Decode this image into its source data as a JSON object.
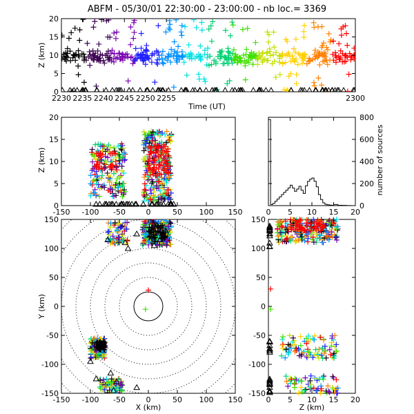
{
  "figure": {
    "title": "ABFM - 05/30/01 22:30:00 - 23:00:00 - nb loc.=    3369"
  },
  "chart_data": [
    {
      "id": "time-height",
      "type": "scatter",
      "xlabel": "Time (UT)",
      "ylabel": "Z (km)",
      "xlim": [
        2230,
        2300
      ],
      "ylim": [
        0,
        20
      ],
      "xticks": [
        "2230",
        "2235",
        "2240",
        "2245",
        "2250",
        "2255",
        "2300"
      ],
      "yticks": [
        "0",
        "5",
        "10",
        "15",
        "20"
      ],
      "color_by": "time (black→purple→blue→cyan→green→yellow→orange→red)",
      "band": {
        "z_center": 9.5,
        "z_spread": 3.0
      },
      "ground_triangles_z": 0
    },
    {
      "id": "x-z",
      "type": "scatter",
      "xlabel": "",
      "ylabel": "Z (km)",
      "xlim": [
        -150,
        150
      ],
      "ylim": [
        0,
        20
      ],
      "xticks": [
        "-150",
        "-100",
        "-50",
        "0",
        "50",
        "100",
        "150"
      ],
      "yticks": [
        "0",
        "5",
        "10",
        "15",
        "20"
      ],
      "clusters": [
        {
          "x_range": [
            -100,
            -40
          ],
          "z_range": [
            2,
            14
          ]
        },
        {
          "x_range": [
            -8,
            40
          ],
          "z_range": [
            1,
            17
          ]
        }
      ]
    },
    {
      "id": "altitude-histogram",
      "type": "line",
      "xlabel": "",
      "ylabel": "number of sources",
      "xlim": [
        0,
        20
      ],
      "ylim": [
        0,
        800
      ],
      "xticks": [
        "0",
        "5",
        "10",
        "15",
        "20"
      ],
      "yticks": [
        "0",
        "200",
        "400",
        "600",
        "800"
      ],
      "x": [
        0,
        0.5,
        1,
        1.5,
        2,
        2.5,
        3,
        3.5,
        4,
        4.5,
        5,
        5.5,
        6,
        6.5,
        7,
        7.5,
        8,
        8.5,
        9,
        9.5,
        10,
        10.5,
        11,
        11.5,
        12,
        12.5,
        13,
        13.5,
        14,
        14.5,
        15,
        16,
        17,
        18,
        19,
        20
      ],
      "values": [
        780,
        10,
        20,
        40,
        60,
        80,
        100,
        120,
        140,
        160,
        185,
        160,
        130,
        150,
        175,
        140,
        110,
        180,
        220,
        240,
        250,
        220,
        170,
        100,
        55,
        25,
        12,
        8,
        5,
        3,
        10,
        3,
        2,
        1,
        0,
        0
      ]
    },
    {
      "id": "x-y",
      "type": "scatter",
      "xlabel": "X (km)",
      "ylabel": "Y (km)",
      "xlim": [
        -150,
        150
      ],
      "ylim": [
        -150,
        150
      ],
      "xticks": [
        "-150",
        "-100",
        "-50",
        "0",
        "50",
        "100",
        "150"
      ],
      "yticks": [
        "-150",
        "-100",
        "-50",
        "0",
        "50",
        "100",
        "150"
      ],
      "range_rings_km": [
        25,
        50,
        75,
        100,
        125,
        150,
        175,
        200
      ],
      "clusters": [
        {
          "x_range": [
            -70,
            -35
          ],
          "y_range": [
            108,
            145
          ]
        },
        {
          "x_range": [
            -10,
            40
          ],
          "y_range": [
            105,
            150
          ]
        },
        {
          "x_range": [
            -100,
            -75
          ],
          "y_range": [
            -90,
            -55
          ]
        },
        {
          "x_range": [
            -85,
            -45
          ],
          "y_range": [
            -150,
            -125
          ]
        }
      ]
    },
    {
      "id": "z-y",
      "type": "scatter",
      "xlabel": "Z (km)",
      "ylabel": "",
      "xlim": [
        0,
        20
      ],
      "ylim": [
        -150,
        150
      ],
      "xticks": [
        "0",
        "5",
        "10",
        "15",
        "20"
      ],
      "yticks": [
        "-150",
        "-100",
        "-50",
        "0",
        "50",
        "100",
        "150"
      ]
    }
  ],
  "colors": {
    "palette": [
      "#000000",
      "#3a0050",
      "#7800b0",
      "#2020ff",
      "#0090ff",
      "#00e0e0",
      "#00d070",
      "#40e000",
      "#c0e000",
      "#ffd000",
      "#ff8000",
      "#ff0000"
    ]
  }
}
